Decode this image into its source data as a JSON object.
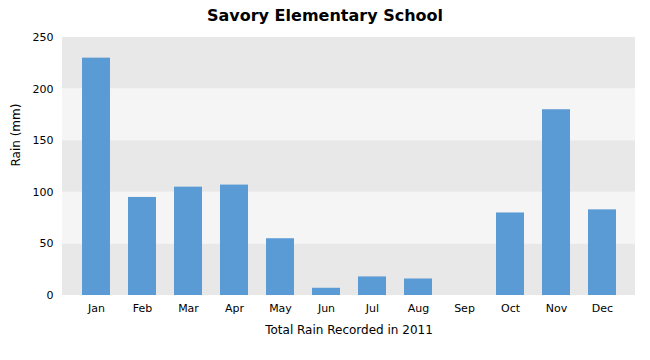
{
  "chart_data": {
    "type": "bar",
    "title": "Savory Elementary School",
    "xlabel": "Total Rain Recorded in 2011",
    "ylabel": "Rain (mm)",
    "categories": [
      "Jan",
      "Feb",
      "Mar",
      "Apr",
      "May",
      "Jun",
      "Jul",
      "Aug",
      "Sep",
      "Oct",
      "Nov",
      "Dec"
    ],
    "values": [
      230,
      95,
      105,
      107,
      55,
      7,
      18,
      16,
      0,
      80,
      180,
      83
    ],
    "color": "#5b9bd5",
    "ylim": [
      0,
      250
    ],
    "yticks": [
      0,
      50,
      100,
      150,
      200,
      250
    ],
    "grid": true
  }
}
